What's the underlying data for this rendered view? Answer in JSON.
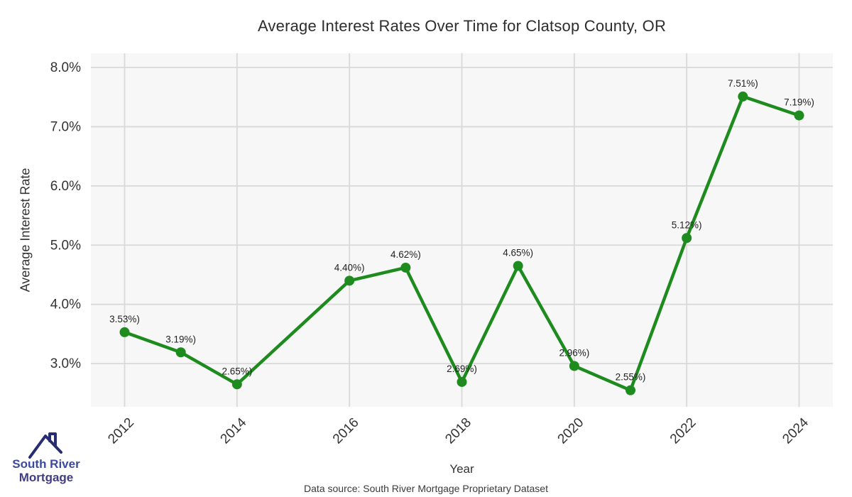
{
  "page": {
    "title": "Average Interest Rates Over Time for Clatsop County, OR"
  },
  "chart_data": {
    "type": "line",
    "title": "Average Interest Rates Over Time for Clatsop County, OR",
    "xlabel": "Year",
    "ylabel": "Average Interest Rate",
    "x": [
      2012,
      2013,
      2014,
      2016,
      2017,
      2018,
      2019,
      2020,
      2021,
      2022,
      2023,
      2024
    ],
    "y": [
      3.53,
      3.19,
      2.65,
      4.4,
      4.62,
      2.69,
      4.65,
      2.96,
      2.55,
      5.12,
      7.51,
      7.19
    ],
    "point_labels": [
      "3.53%)",
      "3.19%)",
      "2.65%)",
      "4.40%)",
      "4.62%)",
      "2.69%)",
      "4.65%)",
      "2.96%)",
      "2.55%)",
      "5.12%)",
      "7.51%)",
      "7.19%)"
    ],
    "x_ticks": [
      {
        "value": 2012,
        "label": "2012"
      },
      {
        "value": 2014,
        "label": "2014"
      },
      {
        "value": 2016,
        "label": "2016"
      },
      {
        "value": 2018,
        "label": "2018"
      },
      {
        "value": 2020,
        "label": "2020"
      },
      {
        "value": 2022,
        "label": "2022"
      },
      {
        "value": 2024,
        "label": "2024"
      }
    ],
    "y_ticks": [
      {
        "value": 8.0,
        "label": "8.0%"
      },
      {
        "value": 7.0,
        "label": "7.0%"
      },
      {
        "value": 6.0,
        "label": "6.0%"
      },
      {
        "value": 5.0,
        "label": "5.0%"
      },
      {
        "value": 4.0,
        "label": "4.0%"
      },
      {
        "value": 3.0,
        "label": "3.0%"
      }
    ],
    "xlim": [
      2011.4,
      2024.6
    ],
    "ylim": [
      2.27,
      8.24
    ],
    "grid": true,
    "legend": "none",
    "line_color": "#1e8b1e",
    "marker_color": "#1e8b1e",
    "plot_bg": "#f7f7f7",
    "grid_color": "#d9d9d9",
    "tick_color": "#333333",
    "label_color": "#222222"
  },
  "footer": {
    "data_source": "Data source: South River Mortgage Proprietary Dataset"
  },
  "logo": {
    "name_line1": "South River",
    "name_line2": "Mortgage",
    "brand_color_1": "#3a4a9f",
    "brand_color_2": "#413d82",
    "icon_color": "#272d70"
  }
}
